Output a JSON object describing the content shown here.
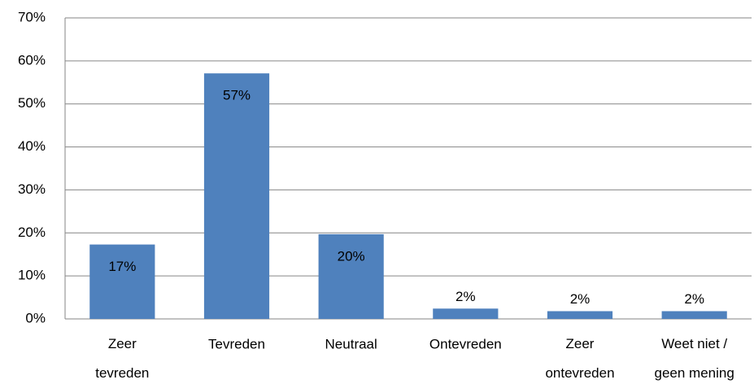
{
  "chart_data": {
    "type": "bar",
    "categories": [
      "Zeer tevreden",
      "Tevreden",
      "Neutraal",
      "Ontevreden",
      "Zeer ontevreden",
      "Weet niet / geen mening"
    ],
    "values": [
      17.3,
      57.1,
      19.7,
      2.4,
      1.8,
      1.8
    ],
    "value_labels": [
      "17%",
      "57%",
      "20%",
      "2%",
      "2%",
      "2%"
    ],
    "color": "#4f81bd",
    "ylim": [
      0,
      70
    ],
    "yticks": [
      {
        "value": 0,
        "label": "0%"
      },
      {
        "value": 10,
        "label": "10%"
      },
      {
        "value": 20,
        "label": "20%"
      },
      {
        "value": 30,
        "label": "30%"
      },
      {
        "value": 40,
        "label": "40%"
      },
      {
        "value": 50,
        "label": "50%"
      },
      {
        "value": 60,
        "label": "60%"
      },
      {
        "value": 70,
        "label": "70%"
      }
    ],
    "grid": true
  }
}
